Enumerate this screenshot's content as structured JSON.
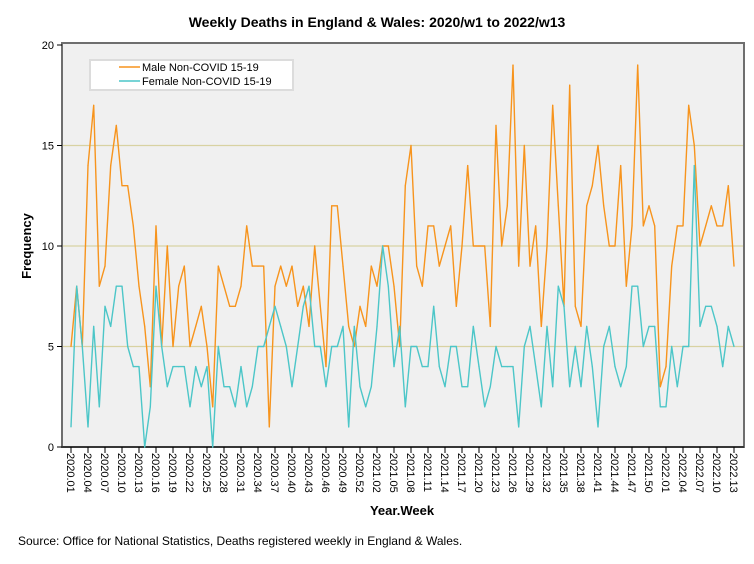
{
  "chart_data": {
    "type": "line",
    "title": "Weekly Deaths in England & Wales: 2020/w1 to 2022/w13",
    "xlabel": "Year.Week",
    "ylabel": "Frequency",
    "ylim": [
      0,
      20
    ],
    "yticks": [
      0,
      5,
      10,
      15,
      20
    ],
    "gridlines": [
      5,
      10,
      15
    ],
    "legend_position": "top-left",
    "x_tick_every": 3,
    "x_tick_labels": [
      "2020.01",
      "2020.04",
      "2020.07",
      "2020.10",
      "2020.13",
      "2020.16",
      "2020.19",
      "2020.22",
      "2020.25",
      "2020.28",
      "2020.31",
      "2020.34",
      "2020.37",
      "2020.40",
      "2020.43",
      "2020.46",
      "2020.49",
      "2020.52",
      "2021.02",
      "2021.05",
      "2021.08",
      "2021.11",
      "2021.14",
      "2021.17",
      "2021.20",
      "2021.23",
      "2021.26",
      "2021.29",
      "2021.32",
      "2021.35",
      "2021.38",
      "2021.41",
      "2021.44",
      "2021.47",
      "2021.50",
      "2022.01",
      "2022.04",
      "2022.07",
      "2022.10",
      "2022.13"
    ],
    "series": [
      {
        "name": "Male Non-COVID 15-19",
        "color": "#f7941d",
        "values": [
          5,
          8,
          5,
          14,
          17,
          8,
          9,
          14,
          16,
          13,
          13,
          11,
          8,
          6,
          3,
          11,
          5,
          10,
          5,
          8,
          9,
          5,
          6,
          7,
          5,
          2,
          9,
          8,
          7,
          7,
          8,
          11,
          9,
          9,
          9,
          1,
          8,
          9,
          8,
          9,
          7,
          8,
          6,
          10,
          7,
          4,
          12,
          12,
          9,
          6,
          5,
          7,
          6,
          9,
          8,
          10,
          10,
          8,
          5,
          13,
          15,
          9,
          8,
          11,
          11,
          9,
          10,
          11,
          7,
          10,
          14,
          10,
          10,
          10,
          6,
          16,
          10,
          12,
          19,
          9,
          15,
          9,
          11,
          6,
          10,
          17,
          12,
          7,
          18,
          7,
          6,
          12,
          13,
          15,
          12,
          10,
          10,
          14,
          8,
          11,
          19,
          11,
          12,
          11,
          3,
          4,
          9,
          11,
          11,
          17,
          15,
          10,
          11,
          12,
          11,
          11,
          13,
          9
        ]
      },
      {
        "name": "Female Non-COVID 15-19",
        "color": "#4cc6c8",
        "values": [
          1,
          8,
          5,
          1,
          6,
          2,
          7,
          6,
          8,
          8,
          5,
          4,
          4,
          0,
          2,
          8,
          5,
          3,
          4,
          4,
          4,
          2,
          4,
          3,
          4,
          0,
          5,
          3,
          3,
          2,
          4,
          2,
          3,
          5,
          5,
          6,
          7,
          6,
          5,
          3,
          5,
          7,
          8,
          5,
          5,
          3,
          5,
          5,
          6,
          1,
          6,
          3,
          2,
          3,
          6,
          10,
          8,
          4,
          6,
          2,
          5,
          5,
          4,
          4,
          7,
          4,
          3,
          5,
          5,
          3,
          3,
          6,
          4,
          2,
          3,
          5,
          4,
          4,
          4,
          1,
          5,
          6,
          4,
          2,
          6,
          3,
          8,
          7,
          3,
          5,
          3,
          6,
          4,
          1,
          5,
          6,
          4,
          3,
          4,
          8,
          8,
          5,
          6,
          6,
          2,
          2,
          5,
          3,
          5,
          5,
          14,
          6,
          7,
          7,
          6,
          4,
          6,
          5
        ]
      }
    ]
  },
  "source": "Source: Office for National Statistics, Deaths registered weekly in England & Wales."
}
